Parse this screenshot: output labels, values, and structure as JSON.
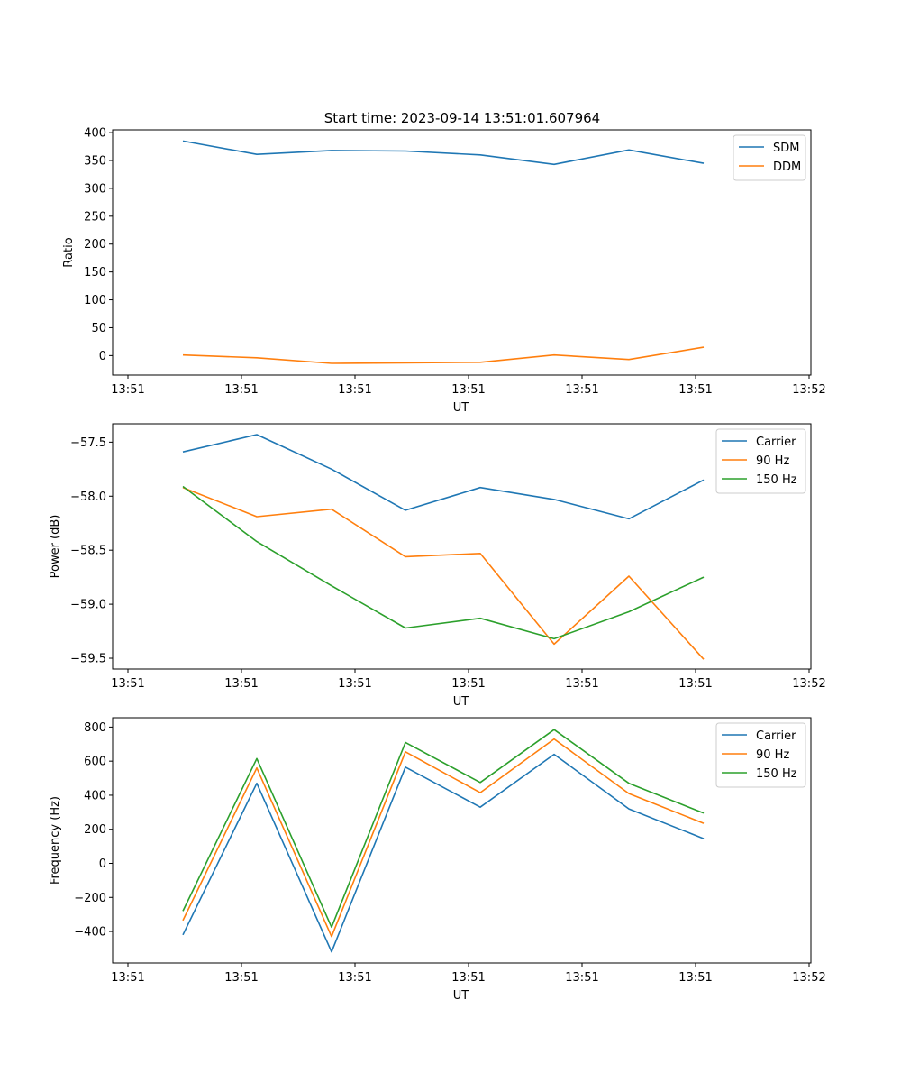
{
  "title": "Start time: 2023-09-14 13:51:01.607964",
  "colors": {
    "blue": "#1f77b4",
    "orange": "#ff7f0e",
    "green": "#2ca02c"
  },
  "chart_data": [
    {
      "type": "line",
      "xlabel": "UT",
      "ylabel": "Ratio",
      "x_tick_labels": [
        "13:51",
        "13:51",
        "13:51",
        "13:51",
        "13:51",
        "13:51",
        "13:52"
      ],
      "y_ticks": [
        0,
        50,
        100,
        150,
        200,
        250,
        300,
        350,
        400
      ],
      "y_tick_labels": [
        "0",
        "50",
        "100",
        "150",
        "200",
        "250",
        "300",
        "350",
        "400"
      ],
      "ylim": [
        -35,
        405
      ],
      "legend_position": "upper right",
      "series": [
        {
          "name": "SDM",
          "color": "#1f77b4",
          "values": [
            385,
            361,
            368,
            367,
            360,
            343,
            369,
            345
          ]
        },
        {
          "name": "DDM",
          "color": "#ff7f0e",
          "values": [
            1,
            -4,
            -14,
            -13,
            -12,
            1,
            -7,
            15
          ]
        }
      ]
    },
    {
      "type": "line",
      "xlabel": "UT",
      "ylabel": "Power (dB)",
      "x_tick_labels": [
        "13:51",
        "13:51",
        "13:51",
        "13:51",
        "13:51",
        "13:51",
        "13:52"
      ],
      "y_ticks": [
        -57.5,
        -58.0,
        -58.5,
        -59.0,
        -59.5
      ],
      "y_tick_labels": [
        "−57.5",
        "−58.0",
        "−58.5",
        "−59.0",
        "−59.5"
      ],
      "ylim": [
        -59.6,
        -57.33
      ],
      "legend_position": "upper right",
      "series": [
        {
          "name": "Carrier",
          "color": "#1f77b4",
          "values": [
            -57.59,
            -57.43,
            -57.75,
            -58.13,
            -57.92,
            -58.03,
            -58.21,
            -57.85
          ]
        },
        {
          "name": "90 Hz",
          "color": "#ff7f0e",
          "values": [
            -57.92,
            -58.19,
            -58.12,
            -58.56,
            -58.53,
            -59.37,
            -58.74,
            -59.51
          ]
        },
        {
          "name": "150 Hz",
          "color": "#2ca02c",
          "values": [
            -57.91,
            -58.42,
            -58.83,
            -59.22,
            -59.13,
            -59.32,
            -59.07,
            -58.75
          ]
        }
      ]
    },
    {
      "type": "line",
      "xlabel": "UT",
      "ylabel": "Frequency (Hz)",
      "x_tick_labels": [
        "13:51",
        "13:51",
        "13:51",
        "13:51",
        "13:51",
        "13:51",
        "13:52"
      ],
      "y_ticks": [
        800,
        600,
        400,
        200,
        0,
        -200,
        -400
      ],
      "y_tick_labels": [
        "800",
        "600",
        "400",
        "200",
        "0",
        "−200",
        "−400"
      ],
      "ylim": [
        -585,
        855
      ],
      "legend_position": "upper right",
      "series": [
        {
          "name": "Carrier",
          "color": "#1f77b4",
          "values": [
            -420,
            470,
            -520,
            565,
            330,
            640,
            320,
            145
          ]
        },
        {
          "name": "90 Hz",
          "color": "#ff7f0e",
          "values": [
            -335,
            560,
            -430,
            655,
            415,
            730,
            410,
            235
          ]
        },
        {
          "name": "150 Hz",
          "color": "#2ca02c",
          "values": [
            -280,
            615,
            -375,
            710,
            475,
            785,
            470,
            295
          ]
        }
      ]
    }
  ]
}
